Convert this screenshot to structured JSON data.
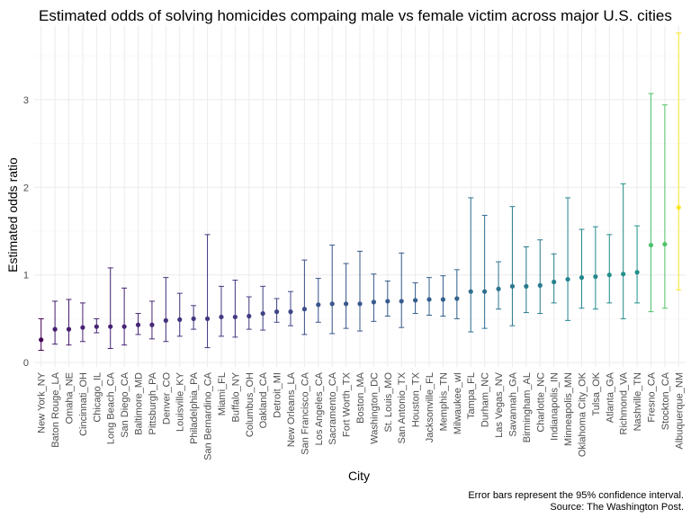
{
  "chart_data": {
    "type": "scatter",
    "title": "Estimated odds of solving homicides compaing male vs female victim across major U.S. cities",
    "xlabel": "City",
    "ylabel": "Estimated odds ratio",
    "ylim": [
      -0.05,
      3.85
    ],
    "yticks": [
      0,
      1,
      2,
      3
    ],
    "grid": true,
    "legend": "none",
    "caption_lines": [
      "Error bars represent the 95% confidence interval.",
      "Source: The Washington Post."
    ],
    "color_scale": "viridis",
    "points": [
      {
        "city": "New York_NY",
        "or": 0.26,
        "lo": 0.14,
        "hi": 0.5
      },
      {
        "city": "Baton Rouge_LA",
        "or": 0.38,
        "lo": 0.21,
        "hi": 0.7
      },
      {
        "city": "Omaha_NE",
        "or": 0.38,
        "lo": 0.2,
        "hi": 0.72
      },
      {
        "city": "Cincinnati_OH",
        "or": 0.4,
        "lo": 0.24,
        "hi": 0.68
      },
      {
        "city": "Chicago_IL",
        "or": 0.41,
        "lo": 0.34,
        "hi": 0.5
      },
      {
        "city": "Long Beach_CA",
        "or": 0.41,
        "lo": 0.16,
        "hi": 1.08
      },
      {
        "city": "San Diego_CA",
        "or": 0.41,
        "lo": 0.2,
        "hi": 0.85
      },
      {
        "city": "Baltimore_MD",
        "or": 0.43,
        "lo": 0.32,
        "hi": 0.56
      },
      {
        "city": "Pittsburgh_PA",
        "or": 0.43,
        "lo": 0.27,
        "hi": 0.7
      },
      {
        "city": "Denver_CO",
        "or": 0.48,
        "lo": 0.24,
        "hi": 0.97
      },
      {
        "city": "Louisville_KY",
        "or": 0.49,
        "lo": 0.3,
        "hi": 0.79
      },
      {
        "city": "Philadelphia_PA",
        "or": 0.5,
        "lo": 0.38,
        "hi": 0.65
      },
      {
        "city": "San Bernardino_CA",
        "or": 0.5,
        "lo": 0.17,
        "hi": 1.46
      },
      {
        "city": "Miami_FL",
        "or": 0.52,
        "lo": 0.3,
        "hi": 0.87
      },
      {
        "city": "Buffalo_NY",
        "or": 0.52,
        "lo": 0.29,
        "hi": 0.94
      },
      {
        "city": "Columbus_OH",
        "or": 0.53,
        "lo": 0.38,
        "hi": 0.75
      },
      {
        "city": "Oakland_CA",
        "or": 0.56,
        "lo": 0.37,
        "hi": 0.87
      },
      {
        "city": "Detroit_MI",
        "or": 0.58,
        "lo": 0.46,
        "hi": 0.73
      },
      {
        "city": "New Orleans_LA",
        "or": 0.58,
        "lo": 0.42,
        "hi": 0.81
      },
      {
        "city": "San Francisco_CA",
        "or": 0.61,
        "lo": 0.32,
        "hi": 1.17
      },
      {
        "city": "Los Angeles_CA",
        "or": 0.66,
        "lo": 0.46,
        "hi": 0.96
      },
      {
        "city": "Sacramento_CA",
        "or": 0.67,
        "lo": 0.33,
        "hi": 1.34
      },
      {
        "city": "Fort Worth_TX",
        "or": 0.67,
        "lo": 0.39,
        "hi": 1.13
      },
      {
        "city": "Boston_MA",
        "or": 0.67,
        "lo": 0.36,
        "hi": 1.27
      },
      {
        "city": "Washington_DC",
        "or": 0.69,
        "lo": 0.47,
        "hi": 1.01
      },
      {
        "city": "St. Louis_MO",
        "or": 0.7,
        "lo": 0.53,
        "hi": 0.93
      },
      {
        "city": "San Antonio_TX",
        "or": 0.7,
        "lo": 0.4,
        "hi": 1.25
      },
      {
        "city": "Houston_TX",
        "or": 0.71,
        "lo": 0.56,
        "hi": 0.91
      },
      {
        "city": "Jacksonville_FL",
        "or": 0.72,
        "lo": 0.54,
        "hi": 0.97
      },
      {
        "city": "Memphis_TN",
        "or": 0.72,
        "lo": 0.53,
        "hi": 0.99
      },
      {
        "city": "Milwaukee_wI",
        "or": 0.73,
        "lo": 0.5,
        "hi": 1.06
      },
      {
        "city": "Tampa_FL",
        "or": 0.81,
        "lo": 0.35,
        "hi": 1.88
      },
      {
        "city": "Durham_NC",
        "or": 0.81,
        "lo": 0.39,
        "hi": 1.68
      },
      {
        "city": "Las Vegas_NV",
        "or": 0.84,
        "lo": 0.61,
        "hi": 1.15
      },
      {
        "city": "Savannah_GA",
        "or": 0.87,
        "lo": 0.42,
        "hi": 1.78
      },
      {
        "city": "Birmingham_AL",
        "or": 0.87,
        "lo": 0.57,
        "hi": 1.32
      },
      {
        "city": "Charlotte_NC",
        "or": 0.88,
        "lo": 0.56,
        "hi": 1.4
      },
      {
        "city": "Indianapolis_IN",
        "or": 0.92,
        "lo": 0.68,
        "hi": 1.24
      },
      {
        "city": "Minneapolis_MN",
        "or": 0.95,
        "lo": 0.48,
        "hi": 1.88
      },
      {
        "city": "Oklahoma City_OK",
        "or": 0.97,
        "lo": 0.62,
        "hi": 1.52
      },
      {
        "city": "Tulsa_OK",
        "or": 0.98,
        "lo": 0.61,
        "hi": 1.55
      },
      {
        "city": "Atlanta_GA",
        "or": 1.0,
        "lo": 0.68,
        "hi": 1.46
      },
      {
        "city": "Richmond_VA",
        "or": 1.01,
        "lo": 0.5,
        "hi": 2.04
      },
      {
        "city": "Nashville_TN",
        "or": 1.03,
        "lo": 0.68,
        "hi": 1.56
      },
      {
        "city": "Fresno_CA",
        "or": 1.34,
        "lo": 0.58,
        "hi": 3.07
      },
      {
        "city": "Stockton_CA",
        "or": 1.35,
        "lo": 0.62,
        "hi": 2.94
      },
      {
        "city": "Albuquerque_NM",
        "or": 1.77,
        "lo": 0.83,
        "hi": 3.76
      }
    ]
  }
}
